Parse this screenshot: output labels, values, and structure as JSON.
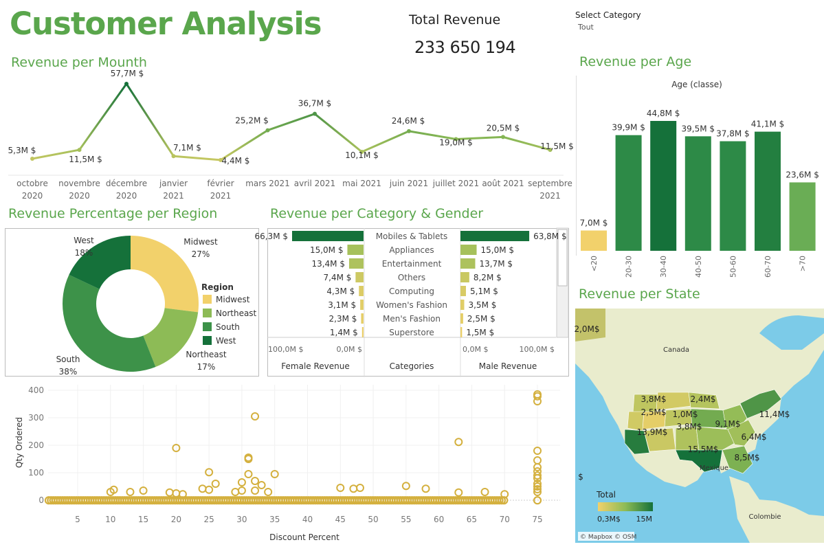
{
  "header": {
    "title": "Customer Analysis",
    "total_revenue_label": "Total Revenue",
    "total_revenue_value": "233 650 194",
    "select_category_label": "Select Category",
    "select_category_value": "Tout"
  },
  "colors": {
    "title_green": "#5aa64c",
    "dark_green": "#15713a",
    "mid_green": "#2d8a47",
    "light_green": "#8dbb56",
    "yellow": "#f2d16b",
    "scatter": "#d4b03e"
  },
  "chart_data": [
    {
      "id": "revenue-per-month",
      "type": "line",
      "title": "Revenue per Mounth",
      "categories": [
        [
          "octobre",
          "2020"
        ],
        [
          "novembre",
          "2020"
        ],
        [
          "décembre",
          "2020"
        ],
        [
          "janvier",
          "2021"
        ],
        [
          "février",
          "2021"
        ],
        [
          "mars 2021"
        ],
        [
          "avril 2021"
        ],
        [
          "mai 2021"
        ],
        [
          "juin 2021"
        ],
        [
          "juillet 2021"
        ],
        [
          "août 2021"
        ],
        [
          "septembre",
          "2021"
        ]
      ],
      "values": [
        5.3,
        11.5,
        57.7,
        7.1,
        4.4,
        25.2,
        36.7,
        10.1,
        24.6,
        19.0,
        20.5,
        11.5
      ],
      "labels": [
        "5,3M $",
        "11,5M $",
        "57,7M $",
        "7,1M $",
        "4,4M $",
        "25,2M $",
        "36,7M $",
        "10,1M $",
        "24,6M $",
        "19,0M $",
        "20,5M $",
        "11,5M $"
      ],
      "unit": "M $"
    },
    {
      "id": "revenue-per-age",
      "type": "bar",
      "title": "Revenue per Age",
      "xlabel": "Age (classe)",
      "categories": [
        "<20",
        "20-30",
        "30-40",
        "40-50",
        "50-60",
        "60-70",
        ">70"
      ],
      "values": [
        7.0,
        39.9,
        44.8,
        39.5,
        37.8,
        41.1,
        23.6
      ],
      "labels": [
        "7,0M $",
        "39,9M $",
        "44,8M $",
        "39,5M $",
        "37,8M $",
        "41,1M $",
        "23,6M $"
      ]
    },
    {
      "id": "revenue-percentage-per-region",
      "type": "pie",
      "title": "Revenue Percentage per Region",
      "legend_title": "Region",
      "legend_placement": "right",
      "slices": [
        {
          "name": "Midwest",
          "value": 27,
          "label": "27%",
          "color": "#f2d16b"
        },
        {
          "name": "Northeast",
          "value": 17,
          "label": "17%",
          "color": "#8dbb56"
        },
        {
          "name": "South",
          "value": 38,
          "label": "38%",
          "color": "#3d9249"
        },
        {
          "name": "West",
          "value": 18,
          "label": "18%",
          "color": "#15713a"
        }
      ]
    },
    {
      "id": "revenue-per-category-gender",
      "type": "bar",
      "title": "Revenue per Category & Gender",
      "categories": [
        "Mobiles & Tablets",
        "Appliances",
        "Entertainment",
        "Others",
        "Computing",
        "Women's Fashion",
        "Men's Fashion",
        "Superstore"
      ],
      "series": [
        {
          "name": "Female Revenue",
          "values": [
            66.3,
            15.0,
            13.4,
            7.4,
            4.3,
            3.1,
            2.3,
            1.4
          ],
          "labels": [
            "66,3M $",
            "15,0M $",
            "13,4M $",
            "7,4M $",
            "4,3M $",
            "3,1M $",
            "2,3M $",
            "1,4M $"
          ]
        },
        {
          "name": "Male Revenue",
          "values": [
            63.8,
            15.0,
            13.7,
            8.2,
            5.1,
            3.5,
            2.5,
            1.5
          ],
          "labels": [
            "63,8M $",
            "15,0M $",
            "13,7M $",
            "8,2M $",
            "5,1M $",
            "3,5M $",
            "2,5M $",
            "1,5M $"
          ]
        }
      ],
      "column_headers": [
        "Female Revenue",
        "Categories",
        "Male Revenue"
      ],
      "female_axis_ticks": [
        "100,0M $",
        "0,0M $"
      ],
      "male_axis_ticks": [
        "0,0M $",
        "100,0M $"
      ],
      "xlim": [
        0,
        100
      ]
    },
    {
      "id": "qty-vs-discount",
      "type": "scatter",
      "xlabel": "Discount Percent",
      "ylabel": "Qty Ordered",
      "xticks": [
        5,
        10,
        15,
        20,
        25,
        30,
        35,
        40,
        45,
        50,
        55,
        60,
        65,
        70,
        75
      ],
      "yticks": [
        0,
        100,
        200,
        300,
        400
      ],
      "xlim": [
        0,
        78
      ],
      "ylim": [
        0,
        420
      ],
      "points": [
        [
          10,
          30
        ],
        [
          10.5,
          38
        ],
        [
          13,
          30
        ],
        [
          15,
          35
        ],
        [
          19,
          28
        ],
        [
          20,
          25
        ],
        [
          20,
          190
        ],
        [
          21,
          22
        ],
        [
          24,
          42
        ],
        [
          25,
          38
        ],
        [
          25,
          102
        ],
        [
          26,
          60
        ],
        [
          29,
          30
        ],
        [
          30,
          35
        ],
        [
          30,
          65
        ],
        [
          31,
          95
        ],
        [
          31,
          150
        ],
        [
          31,
          155
        ],
        [
          32,
          70
        ],
        [
          32,
          35
        ],
        [
          32,
          305
        ],
        [
          33,
          55
        ],
        [
          34,
          30
        ],
        [
          35,
          95
        ],
        [
          45,
          45
        ],
        [
          47,
          42
        ],
        [
          48,
          45
        ],
        [
          55,
          52
        ],
        [
          58,
          42
        ],
        [
          63,
          212
        ],
        [
          63,
          28
        ],
        [
          67,
          30
        ],
        [
          70,
          22
        ],
        [
          75,
          360
        ],
        [
          75,
          385
        ],
        [
          75,
          378
        ],
        [
          75,
          180
        ],
        [
          75,
          145
        ],
        [
          75,
          120
        ],
        [
          75,
          105
        ],
        [
          75,
          90
        ],
        [
          75,
          80
        ],
        [
          75,
          60
        ],
        [
          75,
          50
        ],
        [
          75,
          40
        ],
        [
          75,
          30
        ]
      ]
    },
    {
      "id": "revenue-per-state",
      "type": "map",
      "title": "Revenue per State",
      "legend_title": "Total",
      "legend_min_label": "0,3M$",
      "legend_max_label": "15M",
      "place_labels": [
        "Canada",
        "Mexique",
        "Colombie"
      ],
      "value_labels": [
        "2,0M$",
        "3,8M$",
        "2,4M$",
        "2,5M$",
        "1,0M$",
        "3,8M$",
        "9,1M$",
        "11,4M$",
        "13,9M$",
        "6,4M$",
        "15,5M$",
        "8,5M$",
        "$"
      ],
      "attribution": "© Mapbox © OSM"
    }
  ]
}
